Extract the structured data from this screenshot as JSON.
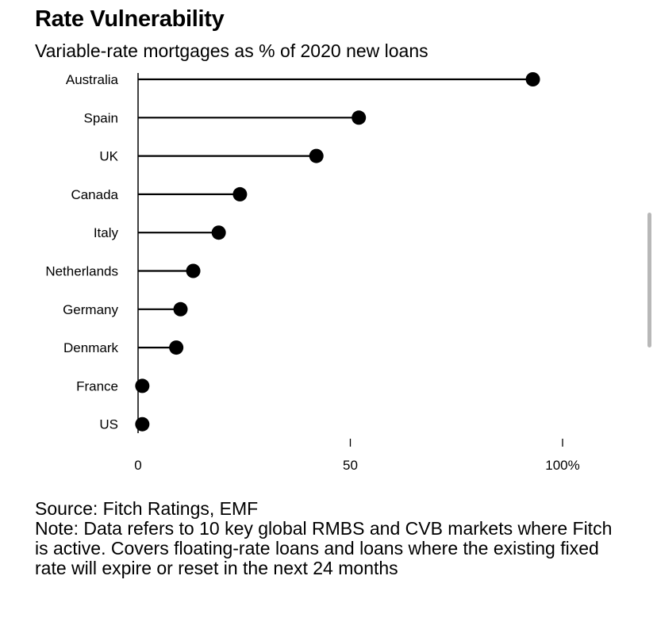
{
  "header": {
    "title": "Rate Vulnerability",
    "subtitle": "Variable-rate mortgages as % of 2020 new loans"
  },
  "chart_data": {
    "type": "lollipop",
    "title": "Rate Vulnerability",
    "subtitle": "Variable-rate mortgages as % of 2020 new loans",
    "categories": [
      "Australia",
      "Spain",
      "UK",
      "Canada",
      "Italy",
      "Netherlands",
      "Germany",
      "Denmark",
      "France",
      "US"
    ],
    "values": [
      93,
      52,
      42,
      24,
      19,
      13,
      10,
      9,
      1,
      1
    ],
    "xlim": [
      0,
      100
    ],
    "x_ticks": [
      0,
      50,
      100
    ],
    "x_tick_labels": [
      "0",
      "50",
      "100%"
    ],
    "grid": false,
    "marker_color": "#000000",
    "line_color": "#000000"
  },
  "footer": {
    "source": "Source: Fitch Ratings, EMF",
    "note": "Note: Data refers to 10 key global RMBS and CVB markets where Fitch is active. Covers floating-rate loans and loans where the existing fixed rate will expire or reset in the next 24 months"
  }
}
